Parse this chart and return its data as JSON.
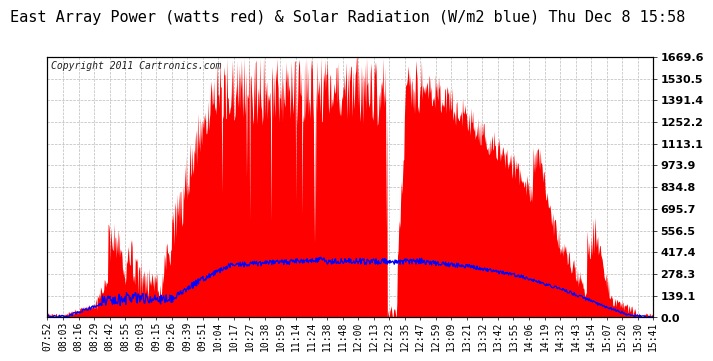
{
  "title": "East Array Power (watts red) & Solar Radiation (W/m2 blue) Thu Dec 8 15:58",
  "copyright_text": "Copyright 2011 Cartronics.com",
  "y_ticks": [
    0.0,
    139.1,
    278.3,
    417.4,
    556.5,
    695.7,
    834.8,
    973.9,
    1113.1,
    1252.2,
    1391.4,
    1530.5,
    1669.6
  ],
  "y_max": 1669.6,
  "y_min": 0.0,
  "x_labels": [
    "07:52",
    "08:03",
    "08:16",
    "08:29",
    "08:42",
    "08:55",
    "09:03",
    "09:15",
    "09:26",
    "09:39",
    "09:51",
    "10:04",
    "10:17",
    "10:27",
    "10:38",
    "10:59",
    "11:14",
    "11:24",
    "11:38",
    "11:48",
    "12:00",
    "12:13",
    "12:23",
    "12:35",
    "12:47",
    "12:59",
    "13:09",
    "13:21",
    "13:32",
    "13:42",
    "13:55",
    "14:06",
    "14:19",
    "14:32",
    "14:43",
    "14:54",
    "15:07",
    "15:20",
    "15:30",
    "15:41"
  ],
  "background_color": "#ffffff",
  "plot_bg_color": "#ffffff",
  "grid_color": "#bbbbbb",
  "red_fill_color": "#ff0000",
  "blue_line_color": "#0000ff",
  "title_fontsize": 11,
  "copyright_fontsize": 7,
  "tick_fontsize": 7,
  "border_color": "#000000",
  "n_points": 960
}
